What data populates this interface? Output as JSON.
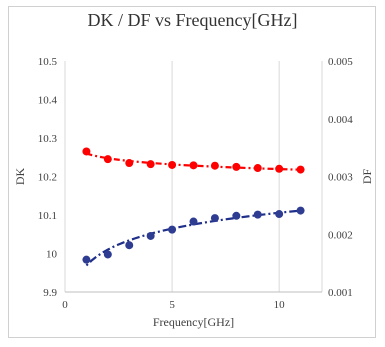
{
  "chart_data": {
    "type": "scatter",
    "title": "DK / DF vs Frequency[GHz]",
    "xlabel": "Frequency[GHz]",
    "ylabel": "DK",
    "y2label": "DF",
    "xlim": [
      0,
      12
    ],
    "ylim": [
      9.9,
      10.5
    ],
    "y2lim": [
      0.001,
      0.005
    ],
    "x_ticks": [
      0,
      5,
      10
    ],
    "y_ticks": [
      9.9,
      10,
      10.1,
      10.2,
      10.3,
      10.4,
      10.5
    ],
    "y2_ticks": [
      0.001,
      0.002,
      0.003,
      0.004,
      0.005
    ],
    "x_tick_labels": [
      "0",
      "5",
      "10"
    ],
    "y_tick_labels": [
      "9.9",
      "10",
      "10.1",
      "10.2",
      "10.3",
      "10.4",
      "10.5"
    ],
    "y2_tick_labels": [
      "0.001",
      "0.002",
      "0.003",
      "0.004",
      "0.005"
    ],
    "grid": "vertical",
    "legend": "none",
    "series": [
      {
        "axis": "y",
        "color": "#ff0000",
        "trend_color": "#ff0000",
        "trend_style": "dash-dot",
        "x": [
          1,
          2,
          3,
          4,
          5,
          6,
          7,
          8,
          9,
          10,
          11
        ],
        "y": [
          10.265,
          10.245,
          10.235,
          10.232,
          10.23,
          10.229,
          10.228,
          10.225,
          10.222,
          10.22,
          10.218
        ]
      },
      {
        "axis": "y2",
        "color": "#2e3d91",
        "trend_color": "#1f2f8a",
        "trend_style": "dotted-dash",
        "x": [
          1,
          2,
          3,
          4,
          5,
          6,
          7,
          8,
          9,
          10,
          11
        ],
        "y": [
          0.00156,
          0.00165,
          0.00181,
          0.00197,
          0.00208,
          0.00222,
          0.00228,
          0.00232,
          0.00234,
          0.00235,
          0.00241
        ]
      }
    ]
  }
}
